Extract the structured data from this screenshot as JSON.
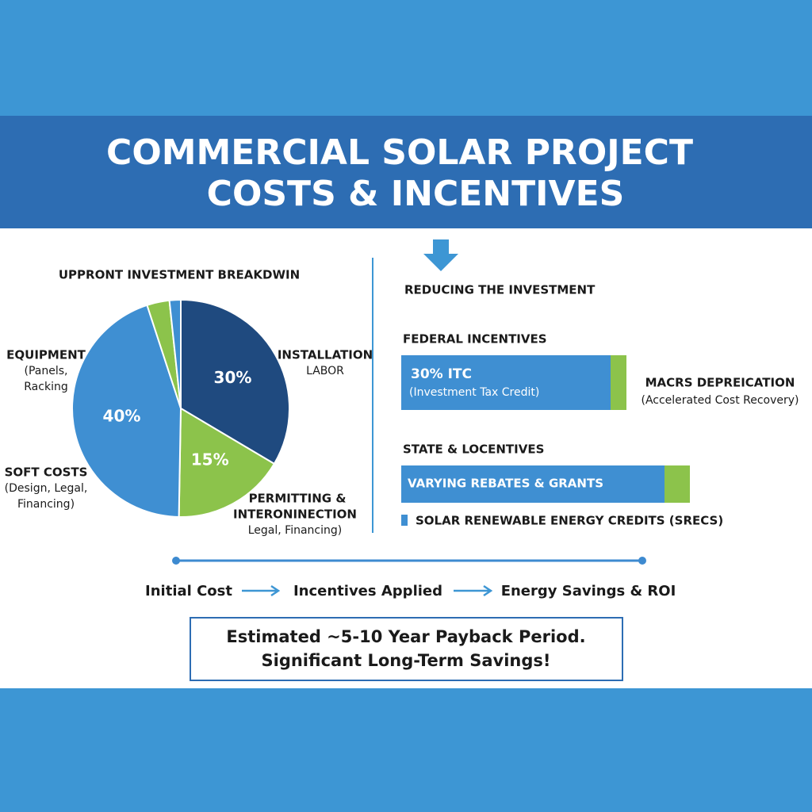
{
  "header": {
    "title_line1": "COMMERCIAL SOLAR PROJECT",
    "title_line2": "COSTS & INCENTIVES"
  },
  "left": {
    "heading": "UPPRONT INVESTMENT BREAKDWIN",
    "annotations": [
      {
        "title": "EQUIPMENT",
        "detail": [
          "(Panels,",
          "Racking"
        ]
      },
      {
        "title": "INSTALLATION",
        "detail": [
          "LABOR"
        ]
      },
      {
        "title": "SOFT COSTS",
        "detail": [
          "(Design, Legal,",
          "Financing)"
        ]
      },
      {
        "title": "PERMITTING &",
        "detail": [
          "INTERONINECTION",
          "Legal, Financing)"
        ]
      }
    ]
  },
  "chart_data": {
    "type": "pie",
    "values": [
      30,
      15,
      40,
      3,
      1.5
    ],
    "value_labels": [
      "30%",
      "15%",
      "40%",
      null,
      null
    ],
    "colors": [
      "#1f4a7f",
      "#8cc34b",
      "#3f8fd2",
      "#8cc34b",
      "#3f8fd2"
    ]
  },
  "right": {
    "heading": "REDUCING THE INVESTMENT",
    "federal": {
      "heading": "FEDERAL INCENTIVES",
      "bar_title": "30% ITC",
      "bar_detail": "(Investment Tax Credit)",
      "side_title": "MACRS DEPREICATION",
      "side_detail": "(Accelerated Cost Recovery)"
    },
    "state": {
      "heading": "STATE & LOCENTIVES",
      "bar_title": "VARYING REBATES & GRANTS",
      "note": "SOLAR RENEWABLE ENERGY CREDITS (SRECS)"
    }
  },
  "flow": {
    "steps": [
      "Initial Cost",
      "Incentives Applied",
      "Energy Savings & ROI"
    ]
  },
  "summary": {
    "line1": "Estimated ~5-10 Year Payback Period.",
    "line2": "Significant Long-Term Savings!"
  }
}
